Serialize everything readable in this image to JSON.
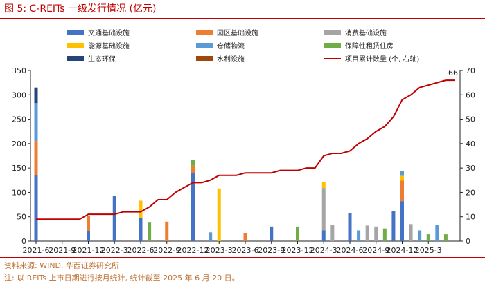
{
  "header": {
    "figure_label": "图 5:",
    "title": "C-REITs 一级发行情况 (亿元)"
  },
  "footer": {
    "source": "资料来源: WIND, 华西证券研究所",
    "note": "注: 以 REITs 上市日期进行按月统计, 统计截至 2025 年 6 月 20 日。"
  },
  "colors": {
    "accent": "#c00000",
    "traffic": "#4472c4",
    "industrial_park": "#ed7d31",
    "consumer": "#a5a5a5",
    "energy": "#ffc000",
    "warehouse": "#5b9bd5",
    "rental_housing": "#70ad47",
    "eco_env": "#264478",
    "water": "#9e480e",
    "cumulative_line": "#c00000"
  },
  "chart_data": {
    "type": "bar",
    "stacked": true,
    "title": "C-REITs 一级发行情况 (亿元)",
    "xlabel": "",
    "ylabel": "",
    "ylim": [
      0,
      350
    ],
    "y2lim": [
      0,
      70
    ],
    "yticks": [
      "0",
      "50",
      "100",
      "150",
      "200",
      "250",
      "300",
      "350"
    ],
    "y2ticks": [
      "0",
      "10",
      "20",
      "30",
      "40",
      "50",
      "60",
      "70"
    ],
    "xtick_labels": [
      "2021-6",
      "2021-9",
      "2021-12",
      "2022-3",
      "2022-6",
      "2022-9",
      "2022-12",
      "2023-3",
      "2023-6",
      "2023-9",
      "2023-12",
      "2024-3",
      "2024-6",
      "2024-9",
      "2024-12",
      "2025-3"
    ],
    "months": [
      "2021-6",
      "2021-7",
      "2021-8",
      "2021-9",
      "2021-10",
      "2021-11",
      "2021-12",
      "2022-1",
      "2022-2",
      "2022-3",
      "2022-4",
      "2022-5",
      "2022-6",
      "2022-7",
      "2022-8",
      "2022-9",
      "2022-10",
      "2022-11",
      "2022-12",
      "2023-1",
      "2023-2",
      "2023-3",
      "2023-4",
      "2023-5",
      "2023-6",
      "2023-7",
      "2023-8",
      "2023-9",
      "2023-10",
      "2023-11",
      "2023-12",
      "2024-1",
      "2024-2",
      "2024-3",
      "2024-4",
      "2024-5",
      "2024-6",
      "2024-7",
      "2024-8",
      "2024-9",
      "2024-10",
      "2024-11",
      "2024-12",
      "2025-1",
      "2025-2",
      "2025-3",
      "2025-4",
      "2025-5",
      "2025-6"
    ],
    "legend": {
      "placement": "top",
      "entries": [
        "交通基础设施",
        "园区基础设施",
        "消费基础设施",
        "能源基础设施",
        "仓储物流",
        "保障性租赁住房",
        "生态环保",
        "水利设施",
        "项目累计数量 (个, 右轴)"
      ]
    },
    "series": [
      {
        "name": "交通基础设施",
        "color_key": "traffic",
        "values": [
          135,
          0,
          0,
          0,
          0,
          0,
          21,
          0,
          0,
          93,
          0,
          0,
          48,
          0,
          0,
          0,
          0,
          0,
          140,
          0,
          0,
          0,
          0,
          0,
          0,
          0,
          0,
          30,
          0,
          0,
          0,
          0,
          0,
          22,
          0,
          0,
          57,
          0,
          0,
          0,
          0,
          62,
          82,
          0,
          0,
          0,
          0,
          0,
          0
        ]
      },
      {
        "name": "园区基础设施",
        "color_key": "industrial_park",
        "values": [
          70,
          0,
          0,
          0,
          0,
          0,
          30,
          0,
          0,
          0,
          0,
          0,
          0,
          0,
          0,
          40,
          0,
          0,
          15,
          0,
          0,
          0,
          0,
          0,
          16,
          0,
          0,
          0,
          0,
          0,
          0,
          0,
          0,
          0,
          0,
          0,
          0,
          0,
          0,
          0,
          0,
          0,
          42,
          0,
          0,
          0,
          0,
          0,
          0
        ]
      },
      {
        "name": "消费基础设施",
        "color_key": "consumer",
        "values": [
          0,
          0,
          0,
          0,
          0,
          0,
          0,
          0,
          0,
          0,
          0,
          0,
          0,
          0,
          0,
          0,
          0,
          0,
          0,
          0,
          0,
          0,
          0,
          0,
          0,
          0,
          0,
          0,
          0,
          0,
          0,
          0,
          0,
          87,
          33,
          0,
          0,
          0,
          32,
          30,
          0,
          0,
          0,
          35,
          0,
          0,
          0,
          0,
          0
        ]
      },
      {
        "name": "能源基础设施",
        "color_key": "energy",
        "values": [
          0,
          0,
          0,
          0,
          0,
          0,
          0,
          0,
          0,
          0,
          0,
          0,
          35,
          0,
          0,
          0,
          0,
          0,
          0,
          0,
          0,
          108,
          0,
          0,
          0,
          0,
          0,
          0,
          0,
          0,
          0,
          0,
          0,
          12,
          0,
          0,
          0,
          0,
          0,
          0,
          0,
          0,
          10,
          0,
          0,
          0,
          0,
          0,
          0
        ]
      },
      {
        "name": "仓储物流",
        "color_key": "warehouse",
        "values": [
          78,
          0,
          0,
          0,
          0,
          0,
          0,
          0,
          0,
          0,
          0,
          0,
          0,
          0,
          0,
          0,
          0,
          0,
          0,
          0,
          18,
          0,
          0,
          0,
          0,
          0,
          0,
          0,
          0,
          0,
          0,
          0,
          0,
          0,
          0,
          0,
          0,
          22,
          0,
          0,
          0,
          0,
          10,
          0,
          22,
          0,
          33,
          0,
          0
        ]
      },
      {
        "name": "保障性租赁住房",
        "color_key": "rental_housing",
        "values": [
          0,
          0,
          0,
          0,
          0,
          0,
          0,
          0,
          0,
          0,
          0,
          0,
          0,
          38,
          0,
          0,
          0,
          0,
          12,
          0,
          0,
          0,
          0,
          0,
          0,
          0,
          0,
          0,
          0,
          0,
          30,
          0,
          0,
          0,
          0,
          0,
          0,
          0,
          0,
          0,
          26,
          0,
          0,
          0,
          0,
          14,
          0,
          14,
          0
        ]
      },
      {
        "name": "生态环保",
        "color_key": "eco_env",
        "values": [
          32,
          0,
          0,
          0,
          0,
          0,
          0,
          0,
          0,
          0,
          0,
          0,
          0,
          0,
          0,
          0,
          0,
          0,
          0,
          0,
          0,
          0,
          0,
          0,
          0,
          0,
          0,
          0,
          0,
          0,
          0,
          0,
          0,
          0,
          0,
          0,
          0,
          0,
          0,
          0,
          0,
          0,
          0,
          0,
          0,
          0,
          0,
          0,
          0
        ]
      },
      {
        "name": "水利设施",
        "color_key": "water",
        "values": [
          0,
          0,
          0,
          0,
          0,
          0,
          0,
          0,
          0,
          0,
          0,
          0,
          0,
          0,
          0,
          0,
          0,
          0,
          0,
          0,
          0,
          0,
          0,
          0,
          0,
          0,
          0,
          0,
          0,
          0,
          0,
          0,
          0,
          0,
          0,
          0,
          0,
          0,
          0,
          0,
          0,
          0,
          0,
          0,
          0,
          0,
          0,
          0,
          0
        ]
      },
      {
        "name": "项目累计数量 (个, 右轴)",
        "type": "line",
        "axis": "right",
        "color_key": "cumulative_line",
        "values": [
          9,
          9,
          9,
          9,
          9,
          9,
          11,
          11,
          11,
          11,
          12,
          12,
          12,
          14,
          17,
          17,
          20,
          22,
          24,
          24,
          25,
          27,
          27,
          27,
          28,
          28,
          28,
          28,
          29,
          29,
          29,
          30,
          30,
          35,
          36,
          36,
          37,
          40,
          42,
          45,
          47,
          51,
          58,
          60,
          63,
          64,
          65,
          66,
          66
        ]
      }
    ],
    "annotations": [
      {
        "text": "66",
        "series": "项目累计数量 (个, 右轴)",
        "position": "last point"
      }
    ]
  }
}
